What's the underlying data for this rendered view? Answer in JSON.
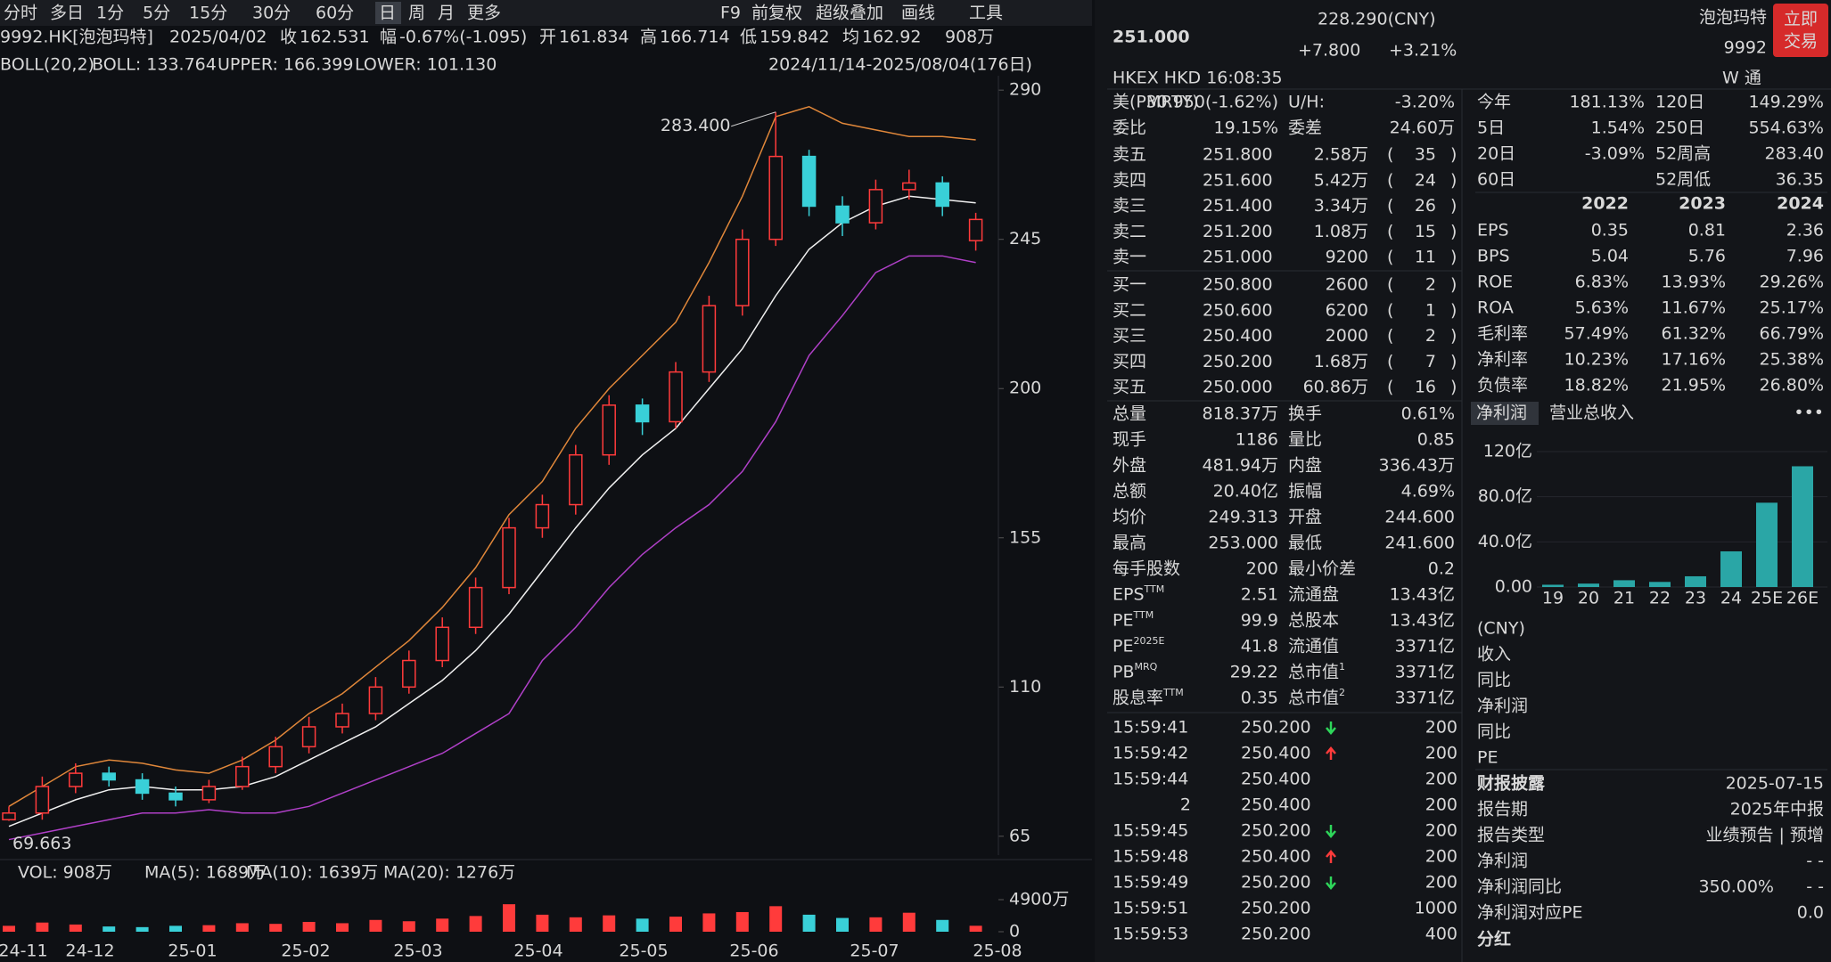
{
  "toolbar": {
    "periods": [
      "分时",
      "多日",
      "1分",
      "5分",
      "15分",
      "30分",
      "60分",
      "日",
      "周",
      "月",
      "更多"
    ],
    "tools": [
      "F9",
      "前复权",
      "超级叠加",
      "画线",
      "工具"
    ]
  },
  "info": {
    "code": "9992.HK[泡泡玛特]",
    "date": "2025/04/02",
    "items": [
      [
        "收",
        "162.531"
      ],
      [
        "幅",
        "-0.67%(-1.095)"
      ],
      [
        "开",
        "161.834"
      ],
      [
        "高",
        "166.714"
      ],
      [
        "低",
        "159.842"
      ],
      [
        "均",
        "162.92"
      ]
    ],
    "vol": "908万"
  },
  "boll": {
    "name": "BOLL(20,2)",
    "mid": "BOLL: 133.764",
    "upper": "UPPER: 166.399",
    "lower": "LOWER: 101.130",
    "range": "2024/11/14-2025/08/04(176日)"
  },
  "kline": {
    "ylim": [
      62,
      293
    ],
    "yticks": [
      290,
      245,
      200,
      155,
      110,
      65
    ],
    "high_label": "283.400",
    "low_label": "69.663",
    "months": [
      "24-11",
      "24-12",
      "25-01",
      "25-02",
      "25-03",
      "25-04",
      "25-05",
      "25-06",
      "25-07",
      "25-08"
    ],
    "open": [
      70,
      72,
      80,
      84,
      82,
      78,
      76,
      80,
      86,
      92,
      98,
      102,
      110,
      118,
      128,
      140,
      158,
      165,
      180,
      195,
      190,
      205,
      225,
      245,
      270,
      255,
      250,
      260,
      262,
      244.6
    ],
    "high": [
      74,
      83,
      87,
      86,
      84,
      80,
      82,
      89,
      95,
      101,
      105,
      113,
      121,
      131,
      143,
      161,
      168,
      183,
      198,
      197,
      208,
      228,
      248,
      283.4,
      272,
      258,
      263,
      266,
      264,
      253
    ],
    "low": [
      69.663,
      70,
      78,
      80,
      76,
      74,
      75,
      79,
      84,
      90,
      96,
      100,
      108,
      116,
      126,
      138,
      155,
      162,
      177,
      186,
      188,
      202,
      222,
      243,
      252,
      246,
      248,
      257,
      252,
      241.6
    ],
    "close": [
      72,
      80,
      84,
      82,
      78,
      76,
      80,
      86,
      92,
      98,
      102,
      110,
      118,
      128,
      140,
      158,
      165,
      180,
      195,
      190,
      205,
      225,
      245,
      270,
      255,
      250,
      260,
      262,
      255,
      251
    ],
    "mid": [
      68,
      72,
      76,
      79,
      80,
      79,
      79,
      80,
      83,
      88,
      93,
      98,
      105,
      112,
      121,
      132,
      145,
      158,
      170,
      180,
      188,
      200,
      212,
      228,
      242,
      250,
      255,
      258,
      257,
      256
    ],
    "upper": [
      74,
      80,
      86,
      88,
      87,
      85,
      84,
      88,
      94,
      102,
      108,
      116,
      124,
      134,
      146,
      162,
      172,
      188,
      200,
      210,
      220,
      238,
      258,
      282,
      285,
      280,
      278,
      276,
      276,
      275
    ],
    "lower": [
      64,
      66,
      68,
      70,
      72,
      72,
      73,
      72,
      72,
      74,
      78,
      82,
      86,
      90,
      96,
      102,
      118,
      128,
      140,
      150,
      158,
      165,
      175,
      190,
      210,
      222,
      235,
      240,
      240,
      238
    ]
  },
  "volume": {
    "labels": [
      "VOL: 908万",
      "MA(5): 1689万",
      "MA(10): 1639万",
      "MA(20): 1276万"
    ],
    "ylim": [
      0,
      4900
    ],
    "yticks": [
      {
        "value": 4900,
        "label": "4900万"
      },
      0
    ],
    "values": [
      900,
      1400,
      1100,
      800,
      700,
      900,
      1000,
      1300,
      1200,
      1500,
      1300,
      1800,
      1600,
      2000,
      2400,
      4200,
      2600,
      2200,
      2500,
      2000,
      2300,
      2800,
      3000,
      3900,
      2600,
      2100,
      2200,
      2900,
      1800,
      908
    ]
  },
  "quote": {
    "price": "251.000",
    "cny": "228.290(CNY)",
    "change": "+7.800",
    "pct": "+3.21%",
    "name": "泡泡玛特",
    "code": "9992",
    "trade": [
      "立即",
      "交易"
    ],
    "exchange": "HKEX  HKD  16:08:35",
    "wtong": "W 通"
  },
  "us": [
    "美(PMRTY)",
    "30.950(-1.62%)",
    "U/H:",
    "-3.20%"
  ],
  "ratio": [
    "委比",
    "19.15%",
    "委差",
    "24.60万"
  ],
  "asks": [
    [
      "卖五",
      "251.800",
      "2.58万",
      "35"
    ],
    [
      "卖四",
      "251.600",
      "5.42万",
      "24"
    ],
    [
      "卖三",
      "251.400",
      "3.34万",
      "26"
    ],
    [
      "卖二",
      "251.200",
      "1.08万",
      "15"
    ],
    [
      "卖一",
      "251.000",
      "9200",
      "11"
    ]
  ],
  "bids": [
    [
      "买一",
      "250.800",
      "2600",
      "2"
    ],
    [
      "买二",
      "250.600",
      "6200",
      "1"
    ],
    [
      "买三",
      "250.400",
      "2000",
      "2"
    ],
    [
      "买四",
      "250.200",
      "1.68万",
      "7"
    ],
    [
      "买五",
      "250.000",
      "60.86万",
      "16"
    ]
  ],
  "stats": [
    [
      "总量",
      "818.37万",
      "换手",
      "0.61%"
    ],
    [
      "现手",
      "1186",
      "量比",
      "0.85"
    ],
    [
      "外盘",
      "481.94万",
      "内盘",
      "336.43万"
    ],
    [
      "总额",
      "20.40亿",
      "振幅",
      "4.69%"
    ],
    [
      "均价",
      "249.313",
      "开盘",
      "244.600"
    ],
    [
      "最高",
      "253.000",
      "最低",
      "241.600"
    ],
    [
      "每手股数",
      "200",
      "最小价差",
      "0.2"
    ]
  ],
  "valuation": [
    {
      "k": "EPS",
      "sup": "TTM",
      "v": "2.51",
      "k2": "流通盘",
      "v2": "13.43亿"
    },
    {
      "k": "PE",
      "sup": "TTM",
      "v": "99.9",
      "k2": "总股本",
      "v2": "13.43亿"
    },
    {
      "k": "PE",
      "sup": "2025E",
      "v": "41.8",
      "k2": "流通值",
      "v2": "3371亿"
    },
    {
      "k": "PB",
      "sup": "MRQ",
      "v": "29.22",
      "k2": "总市值",
      "sup2": "1",
      "v2": "3371亿"
    },
    {
      "k": "股息率",
      "sup": "TTM",
      "v": "0.35",
      "k2": "总市值",
      "sup2": "2",
      "v2": "3371亿"
    }
  ],
  "trades": [
    {
      "t": "15:59:41",
      "p": "250.200",
      "arrow": "down",
      "v": "200"
    },
    {
      "t": "15:59:42",
      "p": "250.400",
      "arrow": "up",
      "v": "200"
    },
    {
      "t": "15:59:44",
      "p": "250.400",
      "v": "200"
    },
    {
      "t": "2",
      "p": "250.400",
      "v": "200"
    },
    {
      "t": "15:59:45",
      "p": "250.200",
      "arrow": "down",
      "v": "200"
    },
    {
      "t": "15:59:48",
      "p": "250.400",
      "arrow": "up",
      "v": "200"
    },
    {
      "t": "15:59:49",
      "p": "250.200",
      "arrow": "down",
      "v": "200"
    },
    {
      "t": "15:59:51",
      "p": "250.200",
      "v": "1000"
    },
    {
      "t": "15:59:53",
      "p": "250.200",
      "v": "400"
    }
  ],
  "returns": [
    [
      "今年",
      "181.13%",
      "120日",
      "149.29%"
    ],
    [
      "5日",
      "1.54%",
      "250日",
      "554.63%"
    ],
    [
      "20日",
      "-3.09%",
      "52周高",
      "283.40"
    ],
    [
      "60日",
      "52周低",
      "36.35"
    ]
  ],
  "fin": {
    "years": [
      "2022",
      "2023",
      "2024"
    ],
    "rows": [
      [
        "EPS",
        "0.35",
        "0.81",
        "2.36"
      ],
      [
        "BPS",
        "5.04",
        "5.76",
        "7.96"
      ],
      [
        "ROE",
        "6.83%",
        "13.93%",
        "29.26%"
      ],
      [
        "ROA",
        "5.63%",
        "11.67%",
        "25.17%"
      ],
      [
        "毛利率",
        "57.49%",
        "61.32%",
        "66.79%"
      ],
      [
        "净利率",
        "10.23%",
        "17.16%",
        "25.38%"
      ],
      [
        "负债率",
        "18.82%",
        "21.95%",
        "26.80%"
      ]
    ]
  },
  "profit": {
    "tabs": [
      "净利润",
      "营业总收入"
    ],
    "more": "•••",
    "categories": [
      "19",
      "20",
      "21",
      "22",
      "23",
      "24",
      "25E",
      "26E"
    ],
    "values": [
      2,
      3,
      6,
      4.5,
      9.5,
      31.6,
      74.7,
      107
    ],
    "color": "#2aa6a6",
    "ylim": [
      0,
      120
    ],
    "yticks": [
      {
        "value": 0,
        "label": "0.00"
      },
      {
        "value": 40,
        "label": "40.0亿"
      },
      {
        "value": 80,
        "label": "80.0亿"
      },
      {
        "value": 120,
        "label": "120亿"
      }
    ]
  },
  "forecast": {
    "unit": "(CNY)",
    "labels": [
      "收入",
      "同比",
      "净利润",
      "同比",
      "PE"
    ]
  },
  "report": [
    [
      "财报披露",
      "2025-07-15"
    ],
    [
      "报告期",
      "2025年中报"
    ],
    [
      "报告类型",
      "业绩预告 | 预增"
    ],
    [
      "净利润",
      "- -"
    ],
    [
      "净利润同比",
      "350.00%",
      "- -"
    ],
    [
      "净利润对应PE",
      "0.0"
    ]
  ],
  "dividend": "分红"
}
